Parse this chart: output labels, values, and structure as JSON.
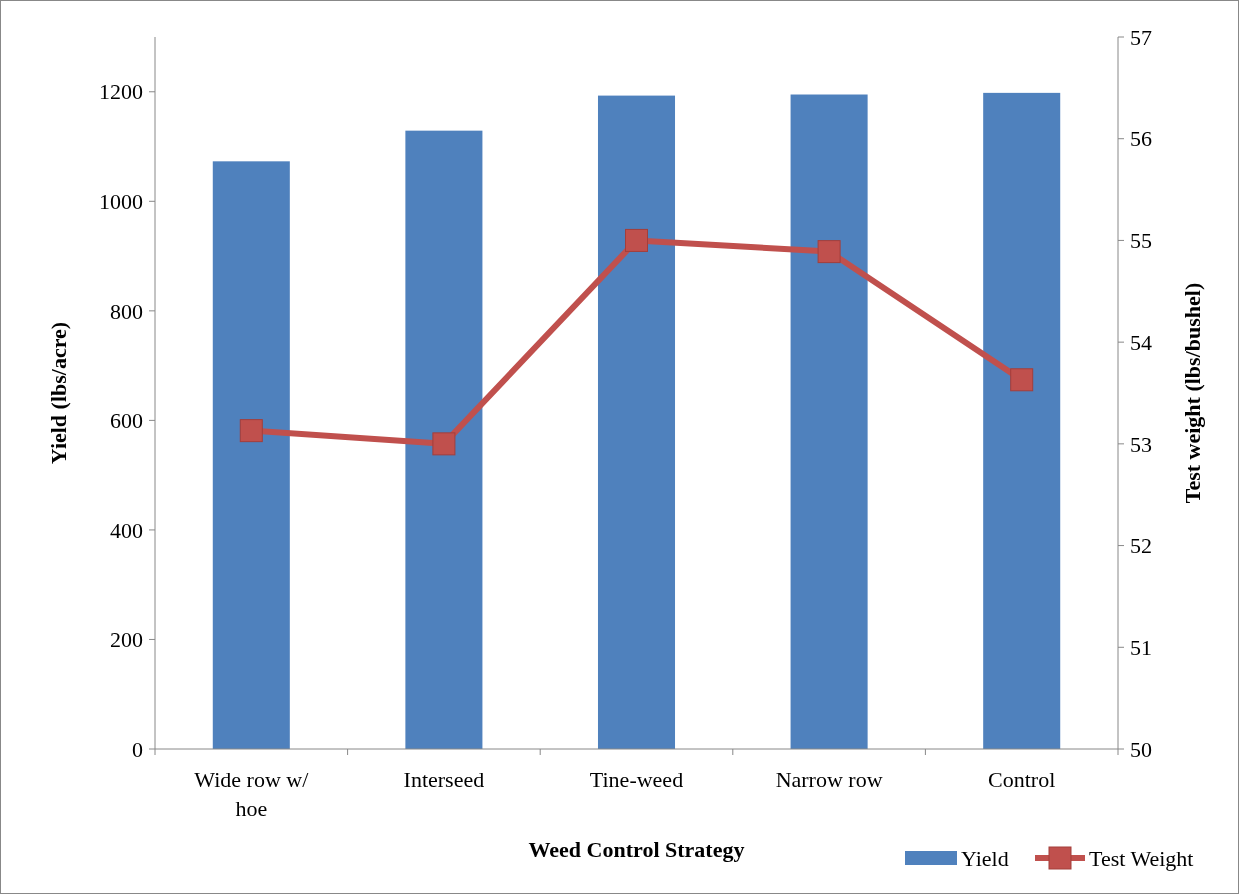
{
  "chart_data": {
    "type": "bar",
    "xlabel": "Weed Control Strategy",
    "ylabel": "Yield (lbs/acre)",
    "y2label": "Test weight (lbs/bushel)",
    "categories": [
      "Wide row w/ hoe",
      "Interseed",
      "Tine-weed",
      "Narrow row",
      "Control"
    ],
    "series": [
      {
        "name": "Yield",
        "color": "#4f81bd",
        "values": [
          1073,
          1129,
          1193,
          1195,
          1198
        ]
      },
      {
        "name": "Test Weight",
        "type": "line",
        "axis": "y2",
        "color": "#c0504d",
        "marker": "square",
        "values": [
          53.13,
          53.0,
          55.0,
          54.89,
          53.63
        ]
      }
    ],
    "ylim": [
      0,
      1300
    ],
    "yticks": [
      0,
      200,
      400,
      600,
      800,
      1000,
      1200
    ],
    "y2lim": [
      50,
      57
    ],
    "y2ticks": [
      50,
      51,
      52,
      53,
      54,
      55,
      56,
      57
    ],
    "legend": "bottom right"
  }
}
